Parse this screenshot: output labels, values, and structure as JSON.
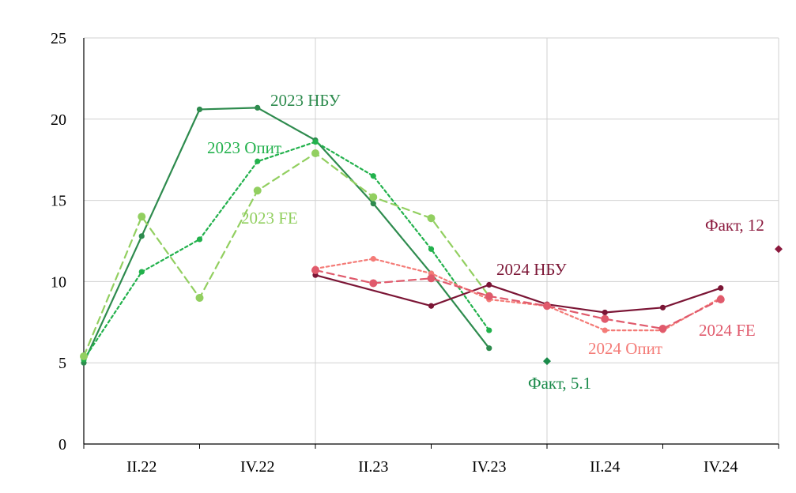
{
  "chart_data": {
    "type": "line",
    "title": "",
    "xlabel": "",
    "ylabel": "",
    "ylim": [
      0,
      25
    ],
    "yticks": [
      0,
      5,
      10,
      15,
      20,
      25
    ],
    "xlim": [
      0,
      12
    ],
    "quarter_labels": [
      "II.22",
      "IV.22",
      "II.23",
      "IV.23",
      "II.24",
      "IV.24"
    ],
    "grid": true,
    "series": [
      {
        "name": "2023 НБУ",
        "color": "#2e8b4e",
        "style": "solid",
        "x": [
          0,
          1,
          2,
          3,
          4,
          5,
          6,
          7
        ],
        "values": [
          5.0,
          12.8,
          20.6,
          20.7,
          18.7,
          14.8,
          10.5,
          5.9
        ]
      },
      {
        "name": "2023 Опит",
        "color": "#22b14c",
        "style": "dotted",
        "x": [
          0,
          1,
          2,
          3,
          4,
          5,
          6,
          7
        ],
        "values": [
          5.2,
          10.6,
          12.6,
          17.4,
          18.6,
          16.5,
          12.0,
          7.0
        ]
      },
      {
        "name": "2023 FE",
        "color": "#92cf60",
        "style": "dashed",
        "x": [
          0,
          1,
          2,
          3,
          4,
          5,
          6,
          7
        ],
        "values": [
          5.4,
          14.0,
          9.0,
          15.6,
          17.9,
          15.2,
          13.9,
          9.1
        ]
      },
      {
        "name": "2024 НБУ",
        "color": "#7b1535",
        "style": "solid",
        "x": [
          4,
          6,
          7,
          8,
          9,
          10,
          11
        ],
        "values": [
          10.4,
          8.5,
          9.8,
          8.6,
          8.1,
          8.4,
          9.6
        ]
      },
      {
        "name": "2024 Опит",
        "color": "#f47b77",
        "style": "dotted",
        "x": [
          4,
          5,
          6,
          7,
          8,
          9,
          10,
          11
        ],
        "values": [
          10.8,
          11.4,
          10.5,
          8.9,
          8.5,
          7.0,
          7.0,
          9.0
        ]
      },
      {
        "name": "2024 FE",
        "color": "#e05a6c",
        "style": "dashed",
        "x": [
          4,
          5,
          6,
          7,
          8,
          9,
          10,
          11
        ],
        "values": [
          10.7,
          9.9,
          10.2,
          9.1,
          8.5,
          7.7,
          7.1,
          8.9
        ]
      }
    ],
    "facts": [
      {
        "label": "Факт, 5.1",
        "x": 8,
        "value": 5.1,
        "color": "#1a8a4a"
      },
      {
        "label": "Факт, 12",
        "x": 12,
        "value": 12.0,
        "color": "#8b1a3e"
      }
    ]
  }
}
